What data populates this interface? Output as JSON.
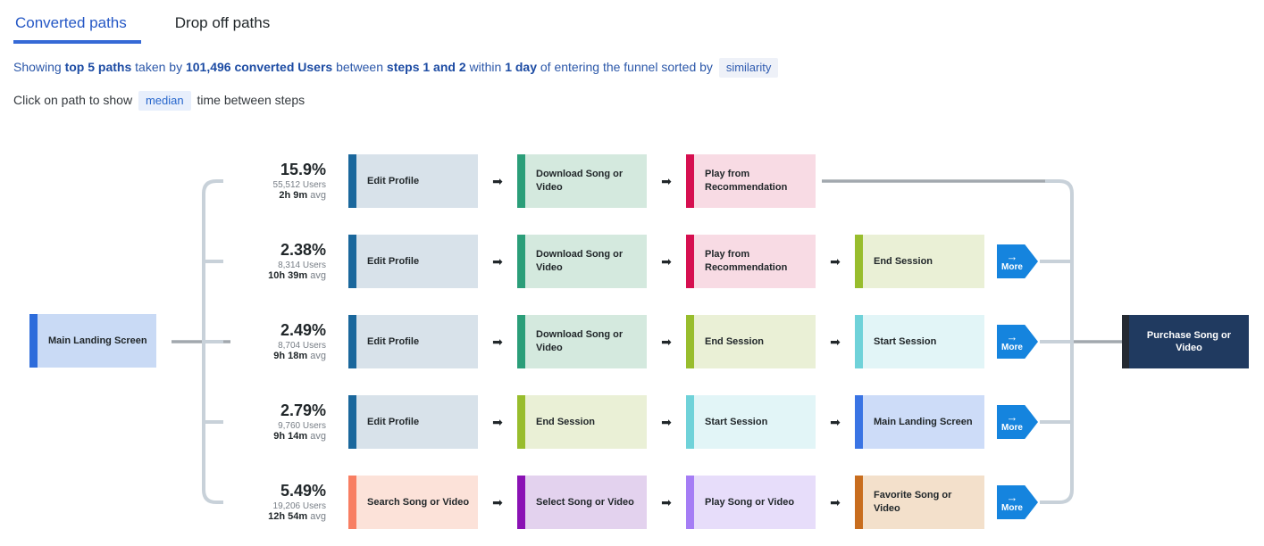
{
  "tabs": {
    "converted": "Converted paths",
    "dropoff": "Drop off paths"
  },
  "subtitle": {
    "s1": "Showing ",
    "b1": "top 5 paths",
    "s2": " taken by ",
    "b2": "101,496 converted Users",
    "s3": " between ",
    "b3": "steps 1 and 2",
    "s4": " within ",
    "b4": "1 day",
    "s5": " of entering the funnel sorted by ",
    "chip": "similarity"
  },
  "hint": {
    "prefix": "Click on path to show ",
    "chip": "median",
    "suffix": " time between steps"
  },
  "start_node": {
    "label": "Main Landing Screen"
  },
  "end_node": {
    "label": "Purchase Song or Video"
  },
  "more_label": "More",
  "labels": {
    "avg_suffix": "avg"
  },
  "glyphs": {
    "arrow": "➡",
    "more_arrow": "→"
  },
  "colors": {
    "steel": {
      "edge": "#1a679c",
      "fill": "#d8e2ea"
    },
    "green": {
      "edge": "#2b9e79",
      "fill": "#d4e9de"
    },
    "pink": {
      "edge": "#d60f50",
      "fill": "#f8dbe4"
    },
    "lime": {
      "edge": "#98bd2d",
      "fill": "#eaf0d6"
    },
    "cyan": {
      "edge": "#6fd2d9",
      "fill": "#e2f5f7"
    },
    "blue": {
      "edge": "#3a74e4",
      "fill": "#cddcf8"
    },
    "coral": {
      "edge": "#f87e62",
      "fill": "#fce2d9"
    },
    "purple": {
      "edge": "#8a12b4",
      "fill": "#e3d2ee"
    },
    "violet": {
      "edge": "#a57df5",
      "fill": "#e7ddfa"
    },
    "orange": {
      "edge": "#c86d1e",
      "fill": "#f3e0cb"
    },
    "connector_light": "#c8d1d9",
    "connector_dark": "#a2a8ae",
    "accent_blue": "#1584de",
    "tab_blue": "#2457c5"
  },
  "rows": [
    {
      "percent": "15.9%",
      "users": "55,512 Users",
      "avg": "2h 9m",
      "has_more": false,
      "steps": [
        {
          "label": "Edit Profile",
          "color": "steel"
        },
        {
          "label": "Download Song or Video",
          "color": "green"
        },
        {
          "label": "Play from Recommendation",
          "color": "pink"
        }
      ]
    },
    {
      "percent": "2.38%",
      "users": "8,314 Users",
      "avg": "10h 39m",
      "has_more": true,
      "steps": [
        {
          "label": "Edit Profile",
          "color": "steel"
        },
        {
          "label": "Download Song or Video",
          "color": "green"
        },
        {
          "label": "Play from Recommendation",
          "color": "pink"
        },
        {
          "label": "End Session",
          "color": "lime"
        }
      ]
    },
    {
      "percent": "2.49%",
      "users": "8,704 Users",
      "avg": "9h 18m",
      "has_more": true,
      "steps": [
        {
          "label": "Edit Profile",
          "color": "steel"
        },
        {
          "label": "Download Song or Video",
          "color": "green"
        },
        {
          "label": "End Session",
          "color": "lime"
        },
        {
          "label": "Start Session",
          "color": "cyan"
        }
      ]
    },
    {
      "percent": "2.79%",
      "users": "9,760 Users",
      "avg": "9h 14m",
      "has_more": true,
      "steps": [
        {
          "label": "Edit Profile",
          "color": "steel"
        },
        {
          "label": "End Session",
          "color": "lime"
        },
        {
          "label": "Start Session",
          "color": "cyan"
        },
        {
          "label": "Main Landing Screen",
          "color": "blue"
        }
      ]
    },
    {
      "percent": "5.49%",
      "users": "19,206 Users",
      "avg": "12h 54m",
      "has_more": true,
      "steps": [
        {
          "label": "Search Song or Video",
          "color": "coral"
        },
        {
          "label": "Select Song or Video",
          "color": "purple"
        },
        {
          "label": "Play Song or Video",
          "color": "violet"
        },
        {
          "label": "Favorite Song or Video",
          "color": "orange"
        }
      ]
    }
  ]
}
